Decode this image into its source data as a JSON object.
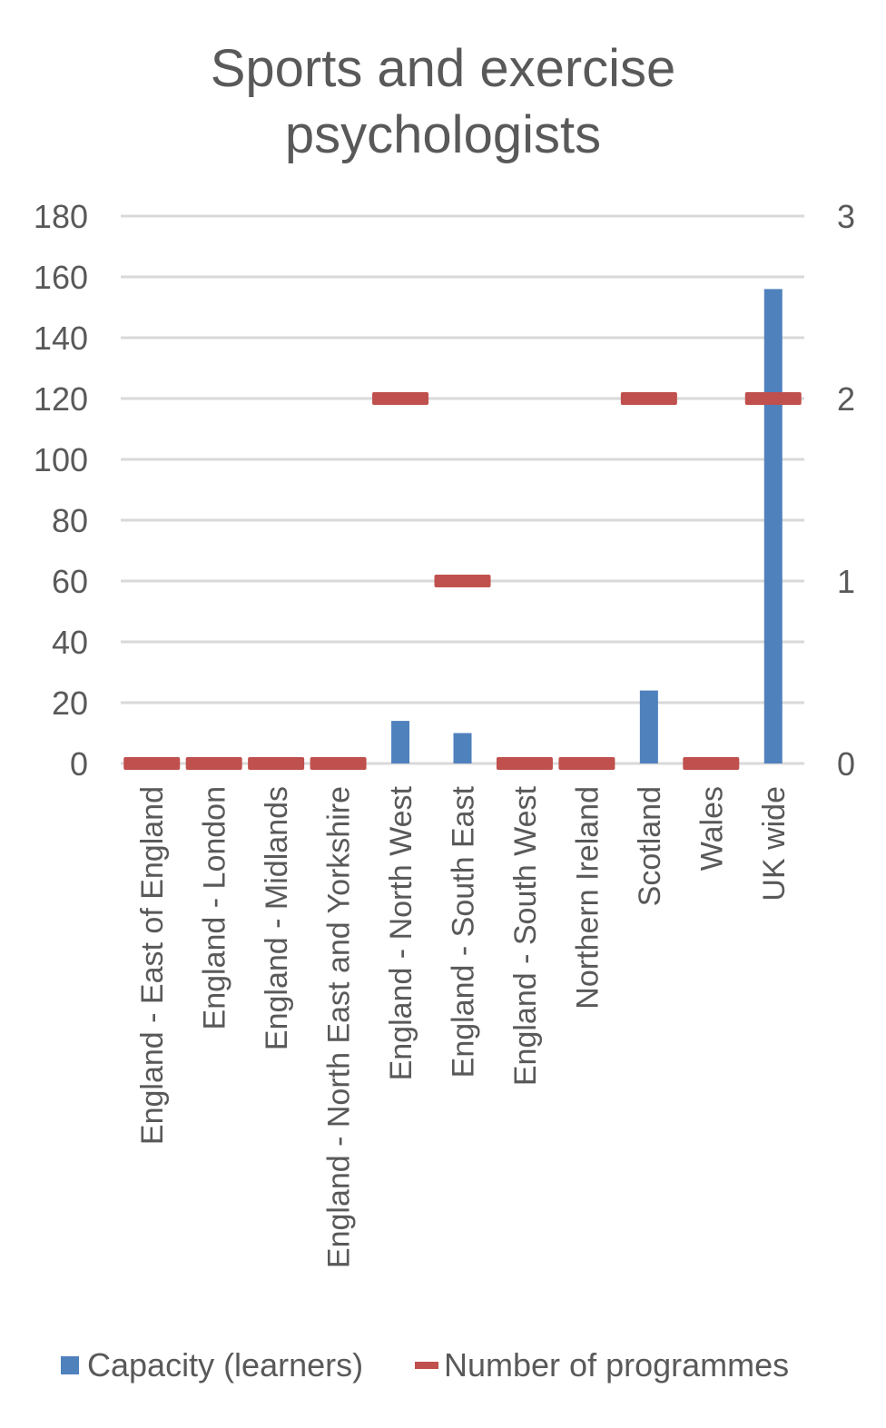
{
  "chart_data": {
    "type": "bar",
    "title": "Sports and exercise psychologists",
    "title_lines": [
      "Sports and exercise",
      "psychologists"
    ],
    "categories": [
      "England - East of England",
      "England - London",
      "England - Midlands",
      "England - North East and Yorkshire",
      "England - North West",
      "England - South East",
      "England - South West",
      "Northern Ireland",
      "Scotland",
      "Wales",
      "UK wide"
    ],
    "series": [
      {
        "name": "Capacity (learners)",
        "type": "bar",
        "axis": "left",
        "color": "#4f81bd",
        "values": [
          0,
          0,
          0,
          0,
          14,
          10,
          0,
          0,
          24,
          0,
          156
        ]
      },
      {
        "name": "Number of programmes",
        "type": "marker-dash",
        "axis": "right",
        "color": "#c0504d",
        "values": [
          0,
          0,
          0,
          0,
          2,
          1,
          0,
          0,
          2,
          0,
          2
        ]
      }
    ],
    "ylim": [
      0,
      180
    ],
    "yticks": [
      0,
      20,
      40,
      60,
      80,
      100,
      120,
      140,
      160,
      180
    ],
    "y2lim": [
      0,
      3
    ],
    "y2ticks": [
      0,
      1,
      2,
      3
    ],
    "grid": true,
    "legend": "bottom"
  }
}
